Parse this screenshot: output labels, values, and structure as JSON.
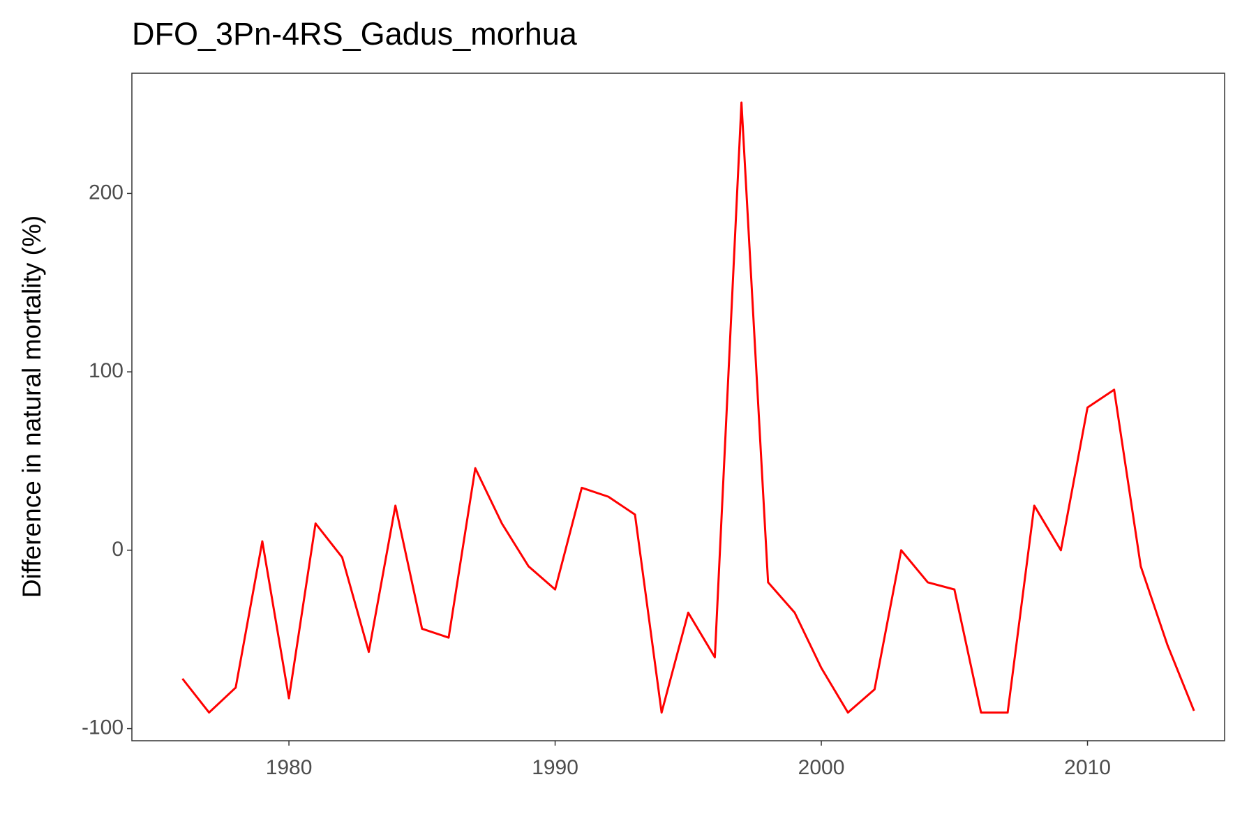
{
  "chart_data": {
    "type": "line",
    "title": "DFO_3Pn-4RS_Gadus_morhua",
    "y_label": "Difference in natural mortality (%)",
    "x": [
      1976,
      1977,
      1978,
      1979,
      1980,
      1981,
      1982,
      1983,
      1984,
      1985,
      1986,
      1987,
      1988,
      1989,
      1990,
      1991,
      1992,
      1993,
      1994,
      1995,
      1996,
      1997,
      1998,
      1999,
      2000,
      2001,
      2002,
      2003,
      2004,
      2005,
      2006,
      2007,
      2008,
      2009,
      2010,
      2011,
      2012,
      2013,
      2014
    ],
    "series": [
      {
        "color": "#ff0000",
        "values": [
          -72,
          -91,
          -77,
          5,
          -83,
          15,
          -4,
          -57,
          25,
          -44,
          -49,
          46,
          15,
          -9,
          -22,
          35,
          30,
          20,
          -91,
          -35,
          -60,
          251,
          -18,
          -35,
          -66,
          -91,
          -78,
          0,
          -18,
          -22,
          -91,
          -91,
          25,
          0,
          80,
          90,
          -9,
          -53,
          -90
        ]
      }
    ],
    "xlim": [
      1974.1,
      2015.15
    ],
    "xticks": [
      1980,
      1990,
      2000,
      2010
    ],
    "ylim": [
      -106.8,
      267.4
    ],
    "yticks": [
      -100,
      0,
      100,
      200
    ],
    "grid": false
  }
}
